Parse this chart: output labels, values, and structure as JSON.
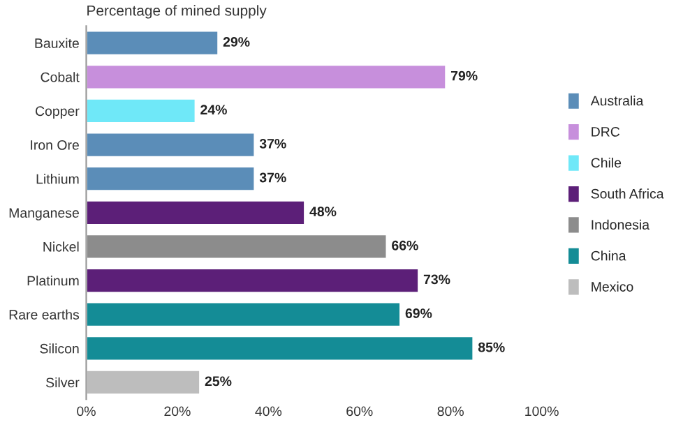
{
  "chart_data": {
    "type": "bar",
    "orientation": "horizontal",
    "title": "Percentage of mined supply",
    "categories": [
      "Bauxite",
      "Cobalt",
      "Copper",
      "Iron Ore",
      "Lithium",
      "Manganese",
      "Nickel",
      "Platinum",
      "Rare earths",
      "Silicon",
      "Silver"
    ],
    "series": [
      {
        "name": "Australia",
        "color": "#5b8db8",
        "values": [
          29,
          null,
          null,
          37,
          37,
          null,
          null,
          null,
          null,
          null,
          null
        ],
        "value_labels": [
          "29%",
          null,
          null,
          "37%",
          "37%",
          null,
          null,
          null,
          null,
          null,
          null
        ]
      },
      {
        "name": "DRC",
        "color": "#c78fdc",
        "values": [
          null,
          79,
          null,
          null,
          null,
          null,
          null,
          null,
          null,
          null,
          null
        ],
        "value_labels": [
          null,
          "79%",
          null,
          null,
          null,
          null,
          null,
          null,
          null,
          null,
          null
        ]
      },
      {
        "name": "Chile",
        "color": "#6fe8f8",
        "values": [
          null,
          null,
          24,
          null,
          null,
          null,
          null,
          null,
          null,
          null,
          null
        ],
        "value_labels": [
          null,
          null,
          "24%",
          null,
          null,
          null,
          null,
          null,
          null,
          null,
          null
        ]
      },
      {
        "name": "South Africa",
        "color": "#5c1f78",
        "values": [
          null,
          null,
          null,
          null,
          null,
          48,
          null,
          73,
          null,
          null,
          null
        ],
        "value_labels": [
          null,
          null,
          null,
          null,
          null,
          "48%",
          null,
          "73%",
          null,
          null,
          null
        ]
      },
      {
        "name": "Indonesia",
        "color": "#8c8c8c",
        "values": [
          null,
          null,
          null,
          null,
          null,
          null,
          66,
          null,
          null,
          null,
          null
        ],
        "value_labels": [
          null,
          null,
          null,
          null,
          null,
          null,
          "66%",
          null,
          null,
          null,
          null
        ]
      },
      {
        "name": "China",
        "color": "#148c96",
        "values": [
          null,
          null,
          null,
          null,
          null,
          null,
          null,
          null,
          69,
          85,
          null
        ],
        "value_labels": [
          null,
          null,
          null,
          null,
          null,
          null,
          null,
          null,
          "69%",
          "85%",
          null
        ]
      },
      {
        "name": "Mexico",
        "color": "#bdbdbd",
        "values": [
          null,
          null,
          null,
          null,
          null,
          null,
          null,
          null,
          null,
          null,
          25
        ],
        "value_labels": [
          null,
          null,
          null,
          null,
          null,
          null,
          null,
          null,
          null,
          null,
          "25%"
        ]
      }
    ],
    "xlim": [
      0,
      100
    ],
    "xticks": [
      {
        "value": 0,
        "label": "0%"
      },
      {
        "value": 20,
        "label": "20%"
      },
      {
        "value": 40,
        "label": "40%"
      },
      {
        "value": 60,
        "label": "60%"
      },
      {
        "value": 80,
        "label": "80%"
      },
      {
        "value": 100,
        "label": "100%"
      }
    ],
    "legend": "right",
    "grid": false
  }
}
